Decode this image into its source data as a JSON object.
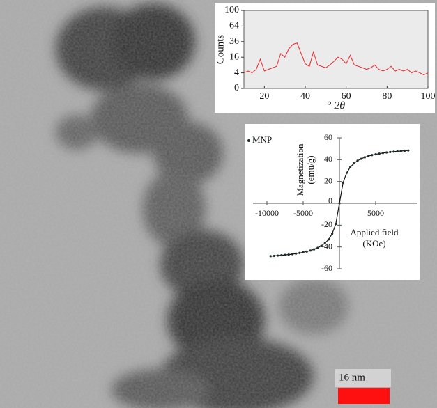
{
  "chart_data": [
    {
      "type": "line",
      "ylabel": "Counts",
      "xlabel": "° 2θ",
      "x": [
        10,
        12,
        14,
        16,
        18,
        20,
        22,
        24,
        26,
        28,
        30,
        32,
        34,
        36,
        38,
        40,
        42,
        44,
        46,
        48,
        50,
        52,
        54,
        56,
        58,
        60,
        62,
        64,
        66,
        68,
        70,
        72,
        74,
        76,
        78,
        80,
        82,
        84,
        86,
        88,
        90,
        92,
        94,
        96,
        98,
        100
      ],
      "values": [
        4,
        5,
        4,
        6,
        14,
        5,
        6,
        7,
        8,
        20,
        16,
        26,
        32,
        34,
        20,
        10,
        8,
        22,
        9,
        8,
        7,
        9,
        12,
        16,
        14,
        10,
        18,
        9,
        8,
        7,
        6,
        7,
        9,
        6,
        5,
        6,
        8,
        5,
        6,
        5,
        6,
        4,
        5,
        4,
        3,
        4
      ],
      "color": "#e8262b",
      "xlim": [
        10,
        100
      ],
      "xticks": [
        20,
        40,
        60,
        80,
        100
      ],
      "ylim": [
        0,
        100
      ],
      "yticks": [
        0,
        4,
        16,
        36,
        64,
        100
      ],
      "yscale": "sqrt"
    },
    {
      "type": "scatter",
      "ylabel": [
        "Magnetization",
        "(emu/g)"
      ],
      "xlabel": [
        "Applied field",
        "(KOe)"
      ],
      "x": [
        -9500,
        -9000,
        -8500,
        -8000,
        -7500,
        -7000,
        -6500,
        -6000,
        -5500,
        -5000,
        -4500,
        -4000,
        -3500,
        -3000,
        -2500,
        -2000,
        -1500,
        -1000,
        -500,
        0,
        500,
        1000,
        1500,
        2000,
        2500,
        3000,
        3500,
        4000,
        4500,
        5000,
        5500,
        6000,
        6500,
        7000,
        7500,
        8000,
        8500,
        9000,
        9500
      ],
      "series": [
        {
          "name": "MNP",
          "color": "#1c2b2b",
          "values": [
            -48.4,
            -48.2,
            -47.9,
            -47.6,
            -47.3,
            -47.0,
            -46.6,
            -46.1,
            -45.5,
            -44.9,
            -44.2,
            -43.3,
            -42.2,
            -40.8,
            -39.0,
            -36.6,
            -33.1,
            -27.9,
            -18.9,
            0,
            18.9,
            27.9,
            33.1,
            36.6,
            39.0,
            40.8,
            42.2,
            43.3,
            44.2,
            44.9,
            45.5,
            46.1,
            46.6,
            47.0,
            47.3,
            47.6,
            47.9,
            48.2,
            48.4
          ]
        }
      ],
      "xlim": [
        -10000,
        10000
      ],
      "xticks": [
        -10000,
        -5000,
        5000
      ],
      "ylim": [
        -60,
        60
      ],
      "yticks": [
        -60,
        -40,
        -20,
        0,
        20,
        40,
        60
      ],
      "legend": "upper left"
    }
  ],
  "scale_bar": {
    "label": "16 nm"
  }
}
